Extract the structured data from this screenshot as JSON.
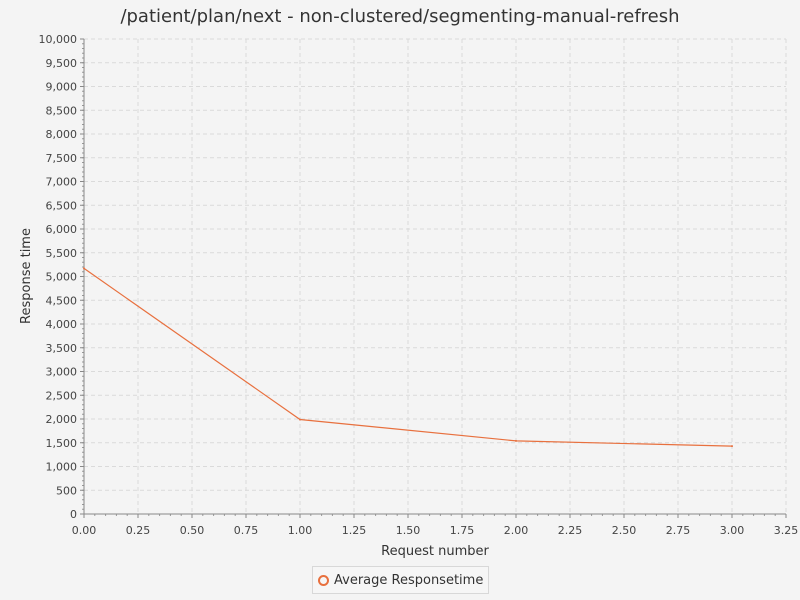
{
  "chart_data": {
    "type": "line",
    "title": "/patient/plan/next - non-clustered/segmenting-manual-refresh",
    "xlabel": "Request number",
    "ylabel": "Response time",
    "xlim": [
      0,
      3.25
    ],
    "ylim": [
      0,
      10000
    ],
    "x_ticks": [
      "0.00",
      "0.25",
      "0.50",
      "0.75",
      "1.00",
      "1.25",
      "1.50",
      "1.75",
      "2.00",
      "2.25",
      "2.50",
      "2.75",
      "3.00",
      "3.25"
    ],
    "y_ticks": [
      "0",
      "500",
      "1,000",
      "1,500",
      "2,000",
      "2,500",
      "3,000",
      "3,500",
      "4,000",
      "4,500",
      "5,000",
      "5,500",
      "6,000",
      "6,500",
      "7,000",
      "7,500",
      "8,000",
      "8,500",
      "9,000",
      "9,500",
      "10,000"
    ],
    "grid": true,
    "legend_position": "bottom-center",
    "series": [
      {
        "name": "Average Responsetime",
        "color": "#e8703e",
        "x": [
          0,
          1,
          2,
          3
        ],
        "y": [
          5170,
          1990,
          1540,
          1430
        ]
      }
    ]
  }
}
